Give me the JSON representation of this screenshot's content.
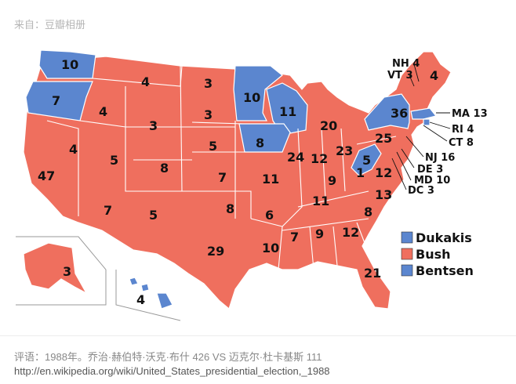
{
  "source_label": "来自：豆瓣相册",
  "colors": {
    "bush": "#ef6f5e",
    "dukakis": "#5b86cf",
    "bentsen": "#5b86cf",
    "border": "#ffffff",
    "inset_border": "#9a9a9a"
  },
  "legend": [
    {
      "label": "Dukakis",
      "color": "#5b86cf"
    },
    {
      "label": "Bush",
      "color": "#ef6f5e"
    },
    {
      "label": "Bentsen",
      "color": "#5b86cf"
    }
  ],
  "map_labels": {
    "wa": "10",
    "or": "7",
    "ca": "47",
    "nv": "4",
    "id": "4",
    "mt": "4",
    "wy": "3",
    "ut": "5",
    "az": "7",
    "co": "8",
    "nm": "5",
    "nd": "3",
    "sd": "3",
    "ne": "5",
    "ks": "7",
    "ok": "8",
    "tx": "29",
    "mn": "10",
    "ia": "8",
    "mo": "11",
    "ar": "6",
    "la": "10",
    "wi": "11",
    "il": "24",
    "mi": "20",
    "in": "12",
    "oh": "23",
    "ky": "9",
    "tn": "11",
    "ms": "7",
    "al": "9",
    "ga": "12",
    "fl": "21",
    "sc": "8",
    "nc": "13",
    "va": "12",
    "wv": "5",
    "wv_b": "1",
    "pa": "25",
    "ny": "36",
    "me": "4",
    "ak": "3",
    "hi": "4"
  },
  "callouts": {
    "nh": "NH 4",
    "vt": "VT 3",
    "ma": "MA 13",
    "ri": "RI 4",
    "ct": "CT 8",
    "nj": "NJ 16",
    "de": "DE 3",
    "md": "MD 10",
    "dc": "DC 3"
  },
  "caption": "评语：1988年。乔治·赫伯特·沃克·布什 426 VS 迈克尔·杜卡基斯 111",
  "url": "http://en.wikipedia.org/wiki/United_States_presidential_election,_1988"
}
